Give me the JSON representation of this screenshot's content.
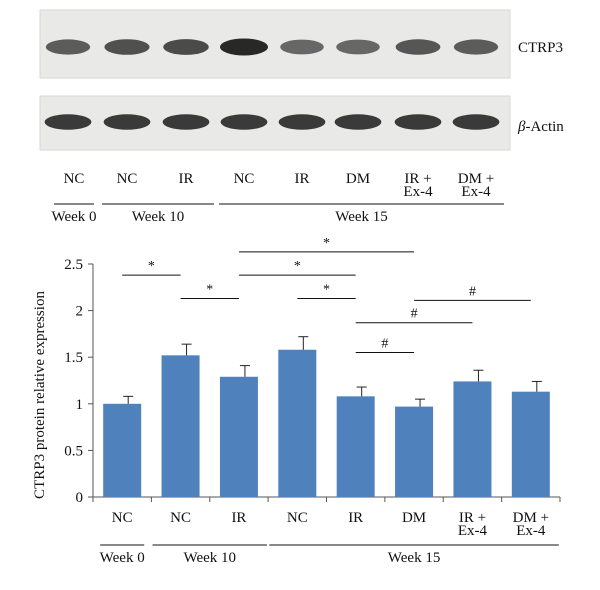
{
  "blot": {
    "bands": [
      {
        "label": "CTRP3",
        "label_prefix": "",
        "intensities": [
          0.55,
          0.65,
          0.7,
          1.0,
          0.45,
          0.45,
          0.6,
          0.55
        ]
      },
      {
        "label": "-Actin",
        "label_prefix": "β",
        "intensities": [
          0.85,
          0.85,
          0.85,
          0.85,
          0.85,
          0.85,
          0.85,
          0.85
        ]
      }
    ],
    "lanes": [
      {
        "line1": "NC",
        "line2": ""
      },
      {
        "line1": "NC",
        "line2": ""
      },
      {
        "line1": "IR",
        "line2": ""
      },
      {
        "line1": "NC",
        "line2": ""
      },
      {
        "line1": "IR",
        "line2": ""
      },
      {
        "line1": "DM",
        "line2": ""
      },
      {
        "line1": "IR +",
        "line2": "Ex-4"
      },
      {
        "line1": "DM +",
        "line2": "Ex-4"
      }
    ],
    "groups": [
      {
        "label": "Week 0",
        "lanes": [
          0,
          0
        ]
      },
      {
        "label": "Week 10",
        "lanes": [
          1,
          2
        ]
      },
      {
        "label": "Week 15",
        "lanes": [
          3,
          7
        ]
      }
    ]
  },
  "chart_data": {
    "type": "bar",
    "ylabel": "CTRP3 protein relative expression",
    "ylim": [
      0,
      2.5
    ],
    "yticks": [
      "0",
      "0.5",
      "1",
      "1.5",
      "2",
      "2.5"
    ],
    "categories": [
      {
        "line1": "NC",
        "line2": ""
      },
      {
        "line1": "NC",
        "line2": ""
      },
      {
        "line1": "IR",
        "line2": ""
      },
      {
        "line1": "NC",
        "line2": ""
      },
      {
        "line1": "IR",
        "line2": ""
      },
      {
        "line1": "DM",
        "line2": ""
      },
      {
        "line1": "IR +",
        "line2": "Ex-4"
      },
      {
        "line1": "DM +",
        "line2": "Ex-4"
      }
    ],
    "values": [
      1.0,
      1.52,
      1.29,
      1.58,
      1.08,
      0.97,
      1.24,
      1.13
    ],
    "errors": [
      0.08,
      0.12,
      0.12,
      0.14,
      0.1,
      0.08,
      0.12,
      0.11
    ],
    "bar_color": "#4f81bd",
    "groups": [
      {
        "label": "Week 0",
        "bars": [
          0,
          0
        ]
      },
      {
        "label": "Week 10",
        "bars": [
          1,
          2
        ]
      },
      {
        "label": "Week 15",
        "bars": [
          3,
          7
        ]
      }
    ],
    "significance": [
      {
        "from": 0,
        "to": 1,
        "symbol": "*",
        "y": 2.38
      },
      {
        "from": 2,
        "to": 5,
        "symbol": "*",
        "y": 2.63
      },
      {
        "from": 2,
        "to": 4,
        "symbol": "*",
        "y": 2.38
      },
      {
        "from": 1,
        "to": 2,
        "symbol": "*",
        "y": 2.13
      },
      {
        "from": 3,
        "to": 4,
        "symbol": "*",
        "y": 2.13
      },
      {
        "from": 4,
        "to": 6,
        "symbol": "#",
        "y": 1.87
      },
      {
        "from": 5,
        "to": 7,
        "symbol": "#",
        "y": 2.11
      },
      {
        "from": 4,
        "to": 5,
        "symbol": "#",
        "y": 1.55
      }
    ],
    "grid": false
  }
}
